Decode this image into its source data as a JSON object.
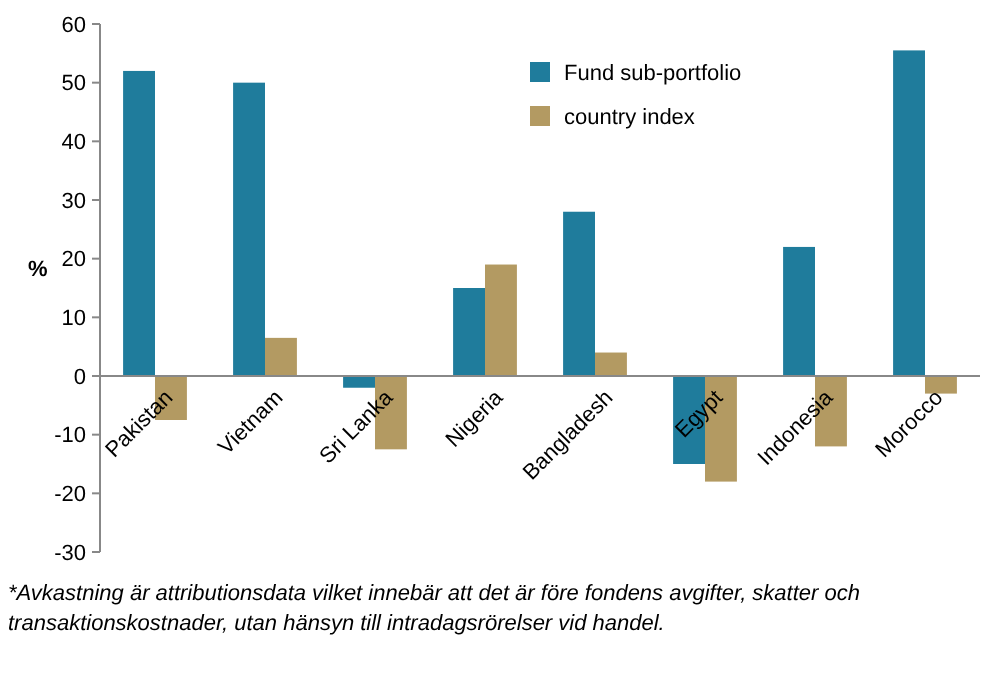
{
  "chart_data": {
    "type": "bar",
    "ylabel": "%",
    "categories": [
      "Pakistan",
      "Vietnam",
      "Sri Lanka",
      "Nigeria",
      "Bangladesh",
      "Egypt",
      "Indonesia",
      "Morocco"
    ],
    "series": [
      {
        "name": "Fund sub-portfolio",
        "color": "#1f7c9c",
        "values": [
          52,
          50,
          -2,
          15,
          28,
          -15,
          22,
          55.5
        ]
      },
      {
        "name": "country index",
        "color": "#b39a62",
        "values": [
          -7.5,
          6.5,
          -12.5,
          19,
          4,
          -18,
          -12,
          -3
        ]
      }
    ],
    "ylim": [
      -30,
      60
    ],
    "yticks": [
      -30,
      -20,
      -10,
      0,
      10,
      20,
      30,
      40,
      50,
      60
    ],
    "grid": false,
    "legend": "top",
    "annotations": [
      "*Avkastning är attributionsdata vilket innebär att det är före fondens avgifter, skatter och transaktionskostnader, utan hänsyn till intradagsrörelser vid handel."
    ]
  }
}
